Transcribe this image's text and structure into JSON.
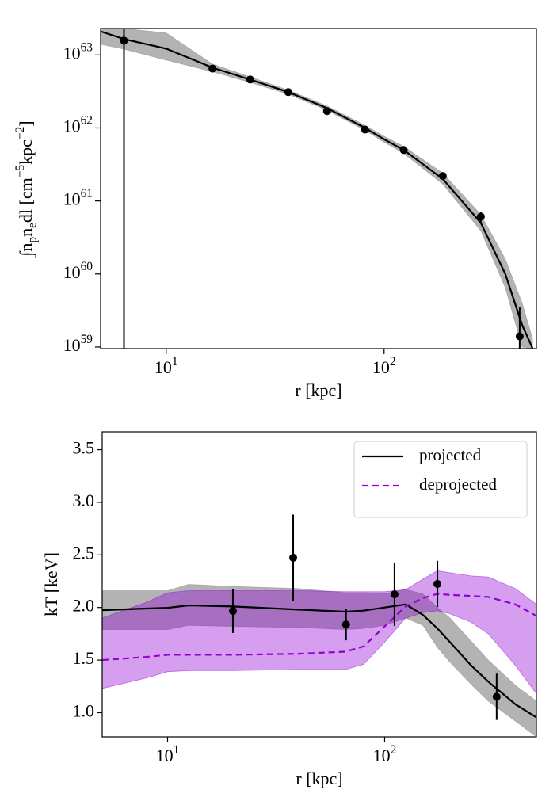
{
  "chart_data": [
    {
      "type": "line",
      "xlabel": "r [kpc]",
      "ylabel": "∫n_{p}n_{e}dl [cm^{−5}kpc^{−2}]",
      "log_x": true,
      "log_y": true,
      "xlim": [
        5,
        500
      ],
      "ylim": [
        9.5e+58,
        2.3e+63
      ],
      "xticks": [
        {
          "value": 10,
          "label": "10^{1}"
        },
        {
          "value": 100,
          "label": "10^{2}"
        }
      ],
      "yticks": [
        {
          "value": 1e+59,
          "label": "10^{59}"
        },
        {
          "value": 1e+60,
          "label": "10^{60}"
        },
        {
          "value": 1e+61,
          "label": "10^{61}"
        },
        {
          "value": 1e+62,
          "label": "10^{62}"
        },
        {
          "value": 1e+63,
          "label": "10^{63}"
        }
      ],
      "x": [
        5,
        6.4,
        10,
        16.3,
        24.3,
        36.3,
        54.7,
        81.8,
        100,
        123,
        186,
        278,
        360,
        430,
        480
      ],
      "series": [
        {
          "color": "#000000",
          "band_color": "#808080",
          "dash": false,
          "values": [
            2.1e+63,
            1.65e+63,
            1.22e+63,
            6.7e+62,
            4.6e+62,
            3.1e+62,
            1.87e+62,
            1e+62,
            7e+61,
            5e+61,
            2e+61,
            5e+60,
            1e+60,
            2e+59,
            9.6e+58
          ],
          "upper": [
            2.3e+63,
            2.3e+63,
            2e+63,
            7.5e+62,
            5e+62,
            3.3e+62,
            2e+62,
            1.08e+62,
            7.7e+61,
            5.6e+61,
            2.4e+61,
            6.5e+60,
            1.6e+60,
            4e+59,
            1.3e+59
          ],
          "lower": [
            1.4e+63,
            1.2e+63,
            8.5e+62,
            5.9e+62,
            4.2e+62,
            2.9e+62,
            1.75e+62,
            9.3e+61,
            6.4e+61,
            4.5e+61,
            1.7e+61,
            3.9e+60,
            6.5e+59,
            1e+59,
            9.5e+58
          ]
        }
      ],
      "points": {
        "color": "#000000",
        "x": [
          6.4,
          16.3,
          24.3,
          36.3,
          54.7,
          81.8,
          123,
          186,
          278,
          419
        ],
        "values": [
          1.57e+63,
          6.5e+62,
          4.6e+62,
          3.1e+62,
          1.7e+62,
          9.5e+61,
          5e+61,
          2.2e+61,
          6.1e+60,
          1.4e+59
        ],
        "upper": [
          2.4e+63,
          6.8e+62,
          4.8e+62,
          3.25e+62,
          1.78e+62,
          1e+62,
          5.25e+61,
          2.3e+61,
          7e+60,
          3.5e+59
        ],
        "lower": [
          1e+58,
          6.2e+62,
          4.4e+62,
          2.95e+62,
          1.62e+62,
          9e+61,
          4.75e+61,
          2.1e+61,
          5.1e+60,
          9.5e+58
        ]
      }
    },
    {
      "type": "line",
      "xlabel": "r [kpc]",
      "ylabel": "kT [keV]",
      "log_x": true,
      "log_y": false,
      "xlim": [
        5,
        500
      ],
      "ylim": [
        0.77,
        3.67
      ],
      "xticks": [
        {
          "value": 10,
          "label": "10^{1}"
        },
        {
          "value": 100,
          "label": "10^{2}"
        }
      ],
      "yticks": [
        {
          "value": 1,
          "label": "1.0"
        },
        1.5,
        {
          "value": 2,
          "label": "2.0"
        },
        2.5,
        {
          "value": 3,
          "label": "3.0"
        },
        3.5
      ],
      "legend": "upper right",
      "x": [
        5,
        8,
        10,
        12.5,
        20,
        40,
        66,
        80,
        100,
        125,
        150,
        175,
        200,
        250,
        300,
        400,
        500
      ],
      "series": [
        {
          "name": "projected",
          "color": "#000000",
          "band_color": "#808080",
          "dash": false,
          "values": [
            1.974,
            1.99,
            1.997,
            2.02,
            2.01,
            1.98,
            1.96,
            1.97,
            2.0,
            2.03,
            1.93,
            1.8,
            1.67,
            1.45,
            1.295,
            1.08,
            0.955
          ],
          "upper": [
            2.16,
            2.16,
            2.16,
            2.22,
            2.2,
            2.18,
            2.14,
            2.14,
            2.13,
            2.17,
            2.13,
            2.0,
            1.9,
            1.68,
            1.5,
            1.26,
            1.11
          ],
          "lower": [
            1.79,
            1.79,
            1.79,
            1.83,
            1.82,
            1.81,
            1.79,
            1.8,
            1.83,
            1.9,
            1.83,
            1.62,
            1.48,
            1.27,
            1.11,
            0.92,
            0.77
          ]
        },
        {
          "name": "deprojected",
          "color": "#9400d3",
          "band_color": "#9400d3",
          "dash": true,
          "values": [
            1.5,
            1.53,
            1.55,
            1.55,
            1.55,
            1.56,
            1.58,
            1.63,
            1.82,
            2.01,
            2.09,
            2.13,
            2.12,
            2.11,
            2.1,
            2.03,
            1.92
          ],
          "upper": [
            1.9,
            2.05,
            2.14,
            2.16,
            2.16,
            2.16,
            2.15,
            2.15,
            2.15,
            2.17,
            2.27,
            2.35,
            2.33,
            2.3,
            2.29,
            2.18,
            2.03
          ],
          "lower": [
            1.23,
            1.33,
            1.39,
            1.4,
            1.4,
            1.41,
            1.41,
            1.46,
            1.67,
            1.9,
            1.95,
            1.97,
            1.94,
            1.86,
            1.75,
            1.45,
            1.18
          ]
        }
      ],
      "points": {
        "color": "#000000",
        "x": [
          20.0,
          37.9,
          66.4,
          111,
          175,
          328
        ],
        "values": [
          1.967,
          2.473,
          1.838,
          2.125,
          2.224,
          1.151
        ],
        "errors": [
          0.21,
          0.41,
          0.15,
          0.3,
          0.22,
          0.22
        ]
      }
    }
  ]
}
